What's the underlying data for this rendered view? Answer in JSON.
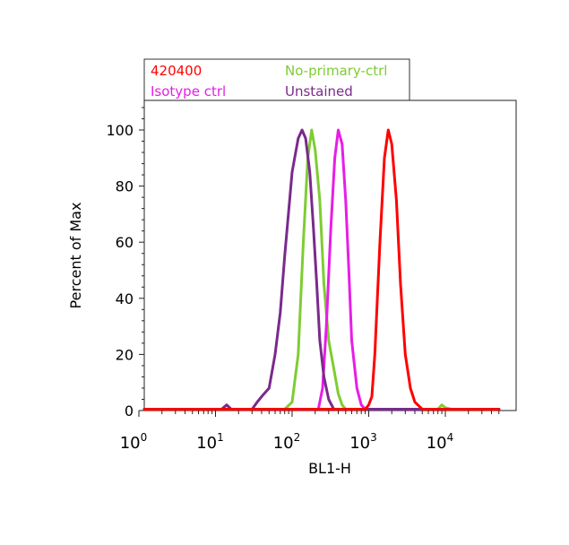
{
  "chart_data": {
    "type": "line",
    "xscale": "log",
    "xlim": [
      1,
      50000
    ],
    "ylim": [
      0,
      110
    ],
    "xlabel": "BL1-H",
    "ylabel": "Percent of Max",
    "x_ticks": [
      {
        "value": 1,
        "base": "10",
        "exp": "0"
      },
      {
        "value": 10,
        "base": "10",
        "exp": "1"
      },
      {
        "value": 100,
        "base": "10",
        "exp": "2"
      },
      {
        "value": 1000,
        "base": "10",
        "exp": "3"
      },
      {
        "value": 10000,
        "base": "10",
        "exp": "4"
      }
    ],
    "y_ticks": [
      "0",
      "20",
      "40",
      "60",
      "80",
      "100"
    ],
    "legend": {
      "placement": "top",
      "entries": [
        {
          "label": "420400",
          "color": "#ff0000"
        },
        {
          "label": "No-primary-ctrl",
          "color": "#7fcc33"
        },
        {
          "label": "Isotype ctrl",
          "color": "#e61ee6"
        },
        {
          "label": "Unstained",
          "color": "#7a2a8c"
        }
      ]
    },
    "series": [
      {
        "name": "No-primary-ctrl",
        "color": "#7fcc33",
        "points": [
          [
            1,
            0
          ],
          [
            80,
            0
          ],
          [
            100,
            3
          ],
          [
            120,
            20
          ],
          [
            140,
            60
          ],
          [
            160,
            90
          ],
          [
            180,
            100
          ],
          [
            200,
            93
          ],
          [
            230,
            75
          ],
          [
            260,
            45
          ],
          [
            300,
            25
          ],
          [
            350,
            15
          ],
          [
            400,
            6
          ],
          [
            450,
            2
          ],
          [
            500,
            0
          ],
          [
            8000,
            0
          ],
          [
            9000,
            2
          ],
          [
            10000,
            1
          ],
          [
            12000,
            0
          ],
          [
            50000,
            0
          ]
        ]
      },
      {
        "name": "Isotype ctrl",
        "color": "#e61ee6",
        "points": [
          [
            1,
            0
          ],
          [
            220,
            0
          ],
          [
            250,
            8
          ],
          [
            280,
            30
          ],
          [
            320,
            65
          ],
          [
            360,
            90
          ],
          [
            400,
            100
          ],
          [
            450,
            95
          ],
          [
            500,
            75
          ],
          [
            550,
            50
          ],
          [
            600,
            25
          ],
          [
            700,
            8
          ],
          [
            800,
            2
          ],
          [
            900,
            0
          ],
          [
            50000,
            0
          ]
        ]
      },
      {
        "name": "Unstained",
        "color": "#7a2a8c",
        "points": [
          [
            1,
            0
          ],
          [
            12,
            0
          ],
          [
            14,
            2
          ],
          [
            16,
            0
          ],
          [
            30,
            0
          ],
          [
            35,
            3
          ],
          [
            40,
            5
          ],
          [
            50,
            8
          ],
          [
            60,
            20
          ],
          [
            70,
            35
          ],
          [
            80,
            55
          ],
          [
            100,
            85
          ],
          [
            120,
            97
          ],
          [
            135,
            100
          ],
          [
            150,
            97
          ],
          [
            170,
            85
          ],
          [
            190,
            65
          ],
          [
            210,
            45
          ],
          [
            230,
            25
          ],
          [
            260,
            12
          ],
          [
            300,
            4
          ],
          [
            350,
            0
          ],
          [
            50000,
            0
          ]
        ]
      },
      {
        "name": "420400",
        "color": "#ff0000",
        "points": [
          [
            1,
            0
          ],
          [
            900,
            0
          ],
          [
            1000,
            2
          ],
          [
            1100,
            5
          ],
          [
            1200,
            20
          ],
          [
            1400,
            60
          ],
          [
            1600,
            90
          ],
          [
            1800,
            100
          ],
          [
            2000,
            95
          ],
          [
            2300,
            75
          ],
          [
            2600,
            45
          ],
          [
            3000,
            20
          ],
          [
            3500,
            8
          ],
          [
            4000,
            3
          ],
          [
            5000,
            0
          ],
          [
            50000,
            0
          ]
        ]
      }
    ]
  }
}
